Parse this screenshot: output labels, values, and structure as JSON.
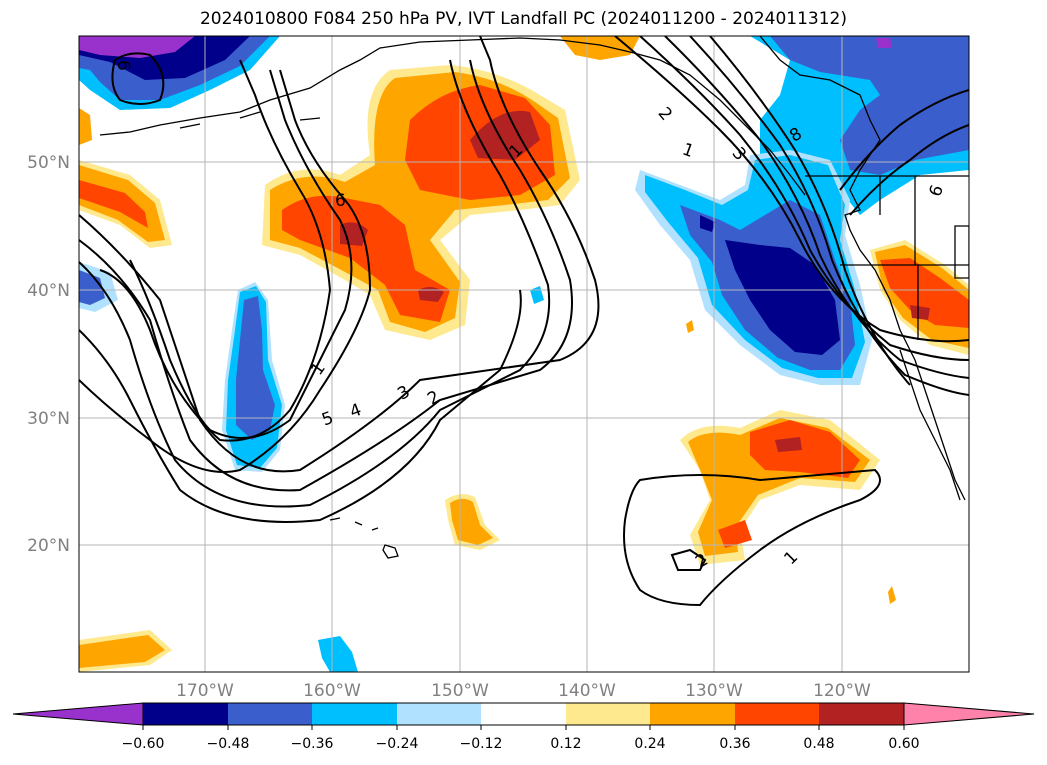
{
  "title": "2024010800 F084 250 hPa PV, IVT Landfall PC (2024011200 - 2024011312)",
  "map": {
    "lat_labels": [
      "50°N",
      "40°N",
      "30°N",
      "20°N"
    ],
    "lon_labels": [
      "170°W",
      "160°W",
      "150°W",
      "140°W",
      "130°W",
      "120°W"
    ]
  },
  "colorbar": {
    "ticks": [
      "−0.60",
      "−0.48",
      "−0.36",
      "−0.24",
      "−0.12",
      "0.12",
      "0.24",
      "0.36",
      "0.48",
      "0.60"
    ],
    "colors": [
      "#9932cc",
      "#00008b",
      "#3a5fcd",
      "#00bfff",
      "#b0e2ff",
      "#ffffff",
      "#fee98e",
      "#ffa500",
      "#ff4500",
      "#b22222",
      "#ff82ab"
    ]
  },
  "contour_labels": [
    "1",
    "2",
    "3",
    "4",
    "5",
    "6",
    "1",
    "2",
    "3",
    "6",
    "1",
    "2",
    "1",
    "6",
    "8"
  ],
  "colors": {
    "pos_light": "#fee98e",
    "pos_orange": "#ffa500",
    "pos_red": "#ff4500",
    "pos_dark": "#b22222",
    "neg_light": "#b0e2ff",
    "neg_cyan": "#00bfff",
    "neg_blue": "#3a5fcd",
    "neg_navy": "#00008b",
    "neg_purple": "#9932cc"
  }
}
